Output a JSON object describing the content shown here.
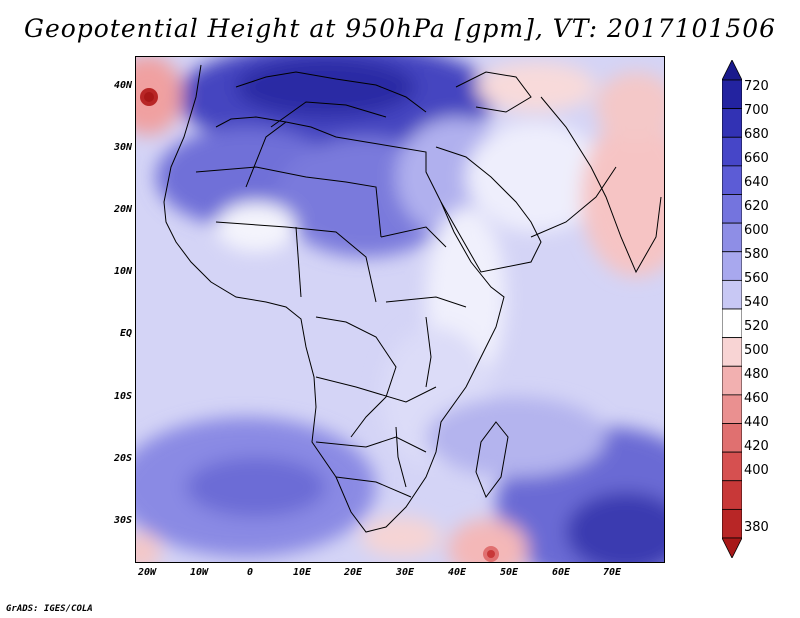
{
  "title": "Geopotential Height at 950hPa [gpm], VT: 2017101506",
  "map": {
    "variable": "Geopotential Height",
    "level": "950hPa",
    "units": "gpm",
    "valid_time": "2017101506",
    "lat_labels": [
      "40N",
      "30N",
      "20N",
      "10N",
      "EQ",
      "10S",
      "20S",
      "30S"
    ],
    "lon_labels": [
      "20W",
      "10W",
      "0",
      "10E",
      "20E",
      "30E",
      "40E",
      "50E",
      "60E",
      "70E"
    ]
  },
  "colorbar": {
    "labels": [
      "720",
      "700",
      "680",
      "660",
      "640",
      "620",
      "600",
      "580",
      "560",
      "540",
      "520",
      "500",
      "480",
      "460",
      "440",
      "420",
      "400",
      "380"
    ],
    "colors": [
      "#1a1a8c",
      "#2323a0",
      "#3232b4",
      "#4646c8",
      "#5c5cd6",
      "#7474de",
      "#8e8ee6",
      "#a8a8ee",
      "#c8c8f4",
      "#ffffff",
      "#f8d4d4",
      "#f2b0b0",
      "#ea9090",
      "#e07070",
      "#d65050",
      "#c83838",
      "#b82626",
      "#a81818"
    ]
  },
  "credit": "GrADS: IGES/COLA"
}
